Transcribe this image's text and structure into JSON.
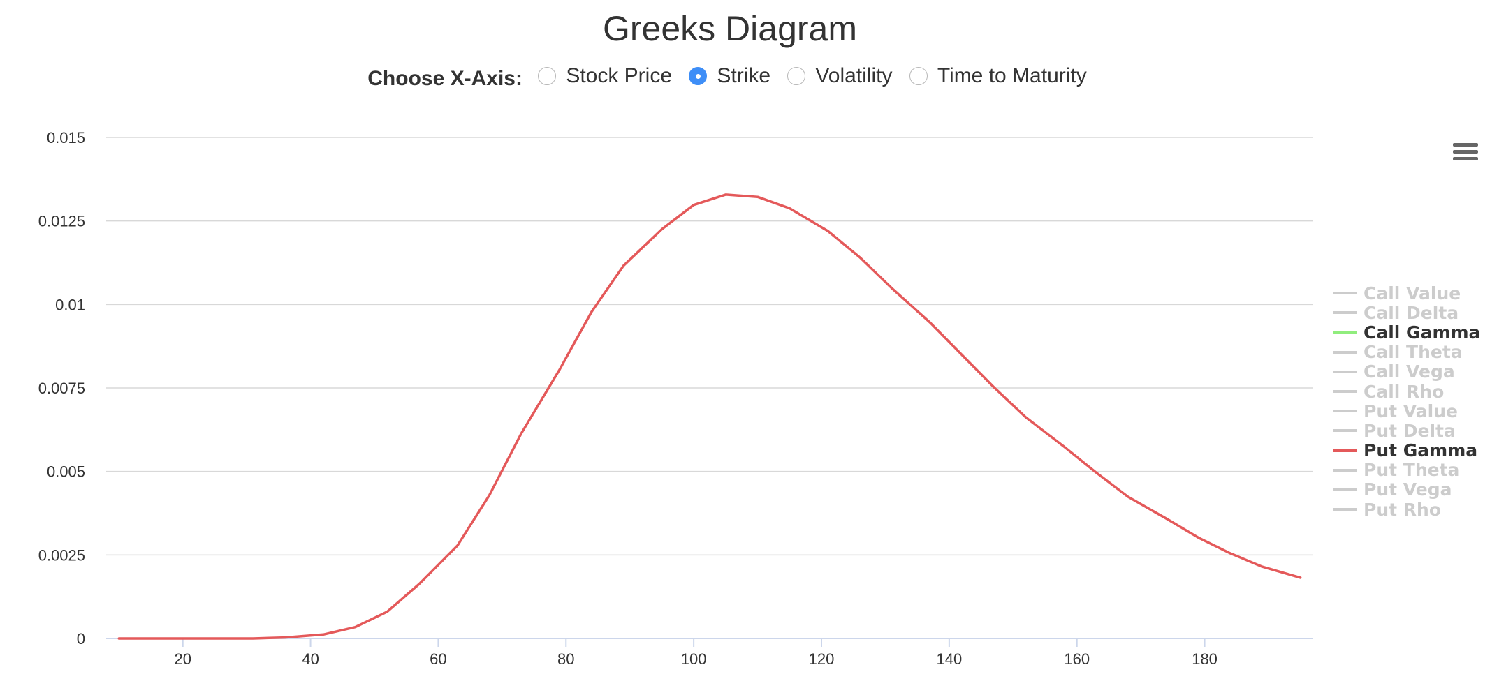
{
  "title": "Greeks Diagram",
  "axis_selector": {
    "label": "Choose X-Axis:",
    "options": [
      "Stock Price",
      "Strike",
      "Volatility",
      "Time to Maturity"
    ],
    "selected": "Strike"
  },
  "legend": [
    {
      "label": "Call Value",
      "active": false
    },
    {
      "label": "Call Delta",
      "active": false
    },
    {
      "label": "Call Gamma",
      "active": true,
      "color": "#90ed7d"
    },
    {
      "label": "Call Theta",
      "active": false
    },
    {
      "label": "Call Vega",
      "active": false
    },
    {
      "label": "Call Rho",
      "active": false
    },
    {
      "label": "Put Value",
      "active": false
    },
    {
      "label": "Put Delta",
      "active": false
    },
    {
      "label": "Put Gamma",
      "active": true,
      "color": "#e4595a"
    },
    {
      "label": "Put Theta",
      "active": false
    },
    {
      "label": "Put Vega",
      "active": false
    },
    {
      "label": "Put Rho",
      "active": false
    }
  ],
  "colors": {
    "inactive": "#cccccc",
    "grid": "#d8d8d8",
    "axis": "#ccd6eb",
    "selected_radio": "#3e8ef7"
  },
  "menu_icon": "hamburger-icon",
  "chart_data": {
    "type": "line",
    "xlim": [
      8,
      197
    ],
    "ylim": [
      0,
      0.015
    ],
    "x_ticks": [
      20,
      40,
      60,
      80,
      100,
      120,
      140,
      160,
      180
    ],
    "y_ticks": [
      0,
      0.0025,
      0.005,
      0.0075,
      0.01,
      0.0125,
      0.015
    ],
    "y_tick_labels": [
      "0",
      "0.0025",
      "0.005",
      "0.0075",
      "0.01",
      "0.0125",
      "0.015"
    ],
    "grid": true,
    "legend_position": "right",
    "series": [
      {
        "name": "Put Gamma",
        "color": "#e4595a",
        "x": [
          10,
          15,
          20,
          25,
          31,
          36,
          42,
          47,
          52,
          57,
          63,
          68,
          73,
          79,
          84,
          89,
          95,
          100,
          105,
          110,
          115,
          121,
          126,
          131,
          137,
          142,
          147,
          152,
          158,
          163,
          168,
          174,
          179,
          184,
          189,
          195
        ],
        "y": [
          0.0,
          0.0,
          0.0,
          0.0,
          0.0,
          3e-05,
          0.00012,
          0.00034,
          0.0008,
          0.00163,
          0.00278,
          0.00429,
          0.00614,
          0.00805,
          0.00978,
          0.01116,
          0.01225,
          0.01298,
          0.01329,
          0.01322,
          0.01288,
          0.0122,
          0.01141,
          0.01049,
          0.00946,
          0.00849,
          0.00752,
          0.00662,
          0.00574,
          0.00497,
          0.00424,
          0.00359,
          0.00302,
          0.00255,
          0.00215,
          0.00182
        ]
      }
    ]
  }
}
